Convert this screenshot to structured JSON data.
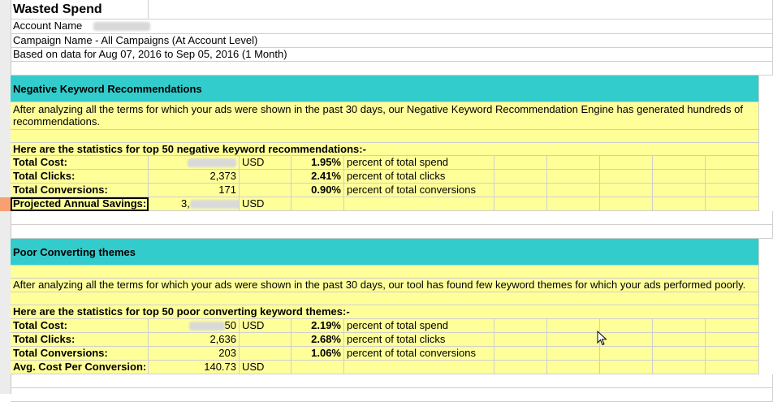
{
  "report": {
    "title": "Wasted Spend",
    "account_label": "Account Name",
    "campaign_label": "Campaign Name - All Campaigns (At Account Level)",
    "date_range": "Based on data for Aug 07, 2016 to Sep 05, 2016 (1 Month)"
  },
  "negative": {
    "header": "Negative Keyword Recommendations",
    "description": "After analyzing all the terms for which your ads were shown in the past 30 days, our Negative Keyword Recommendation Engine has  generated hundreds of recommendations.",
    "stats_title": "Here are the statistics for top 50 negative keyword recommendations:-",
    "rows": [
      {
        "label": "Total Cost:",
        "value": "",
        "unit": "USD",
        "pct": "1.95%",
        "desc": "percent of total spend"
      },
      {
        "label": "Total Clicks:",
        "value": "2,373",
        "unit": "",
        "pct": "2.41%",
        "desc": "percent of total clicks"
      },
      {
        "label": "Total Conversions:",
        "value": "171",
        "unit": "",
        "pct": "0.90%",
        "desc": "percent of total conversions"
      },
      {
        "label": "Projected Annual Savings:",
        "value": "3,",
        "unit": "USD",
        "pct": "",
        "desc": ""
      }
    ]
  },
  "poor": {
    "header": "Poor Converting themes",
    "description": "After analyzing all the terms for which your ads were shown in the past 30 days, our tool has found few  keyword themes for which your ads performed poorly.",
    "stats_title": "Here are the statistics for top 50 poor converting keyword themes:-",
    "rows": [
      {
        "label": "Total Cost:",
        "value": "50",
        "unit": "USD",
        "pct": "2.19%",
        "desc": "percent of total spend"
      },
      {
        "label": "Total Clicks:",
        "value": "2,636",
        "unit": "",
        "pct": "2.68%",
        "desc": "percent of total clicks"
      },
      {
        "label": "Total Conversions:",
        "value": "203",
        "unit": "",
        "pct": "1.06%",
        "desc": "percent of total conversions"
      },
      {
        "label": "Avg. Cost Per Conversion:",
        "value": "140.73",
        "unit": "USD",
        "pct": "",
        "desc": ""
      }
    ]
  },
  "colors": {
    "section_header": "#33cccc",
    "body_fill": "#ffff99",
    "selected_row_header": "#f7a072"
  },
  "icons": {
    "cursor": "arrow-cursor-icon"
  }
}
